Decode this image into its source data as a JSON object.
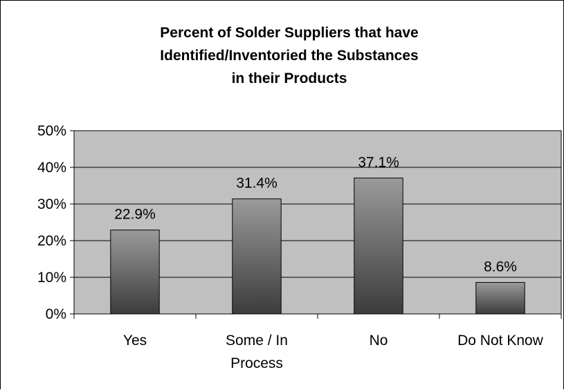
{
  "chart_data": {
    "type": "bar",
    "title_lines": [
      "Percent of Solder Suppliers that have",
      "Identified/Inventoried the Substances",
      "in their Products"
    ],
    "categories": [
      [
        "Yes"
      ],
      [
        "Some / In",
        "Process"
      ],
      [
        "No"
      ],
      [
        "Do Not Know"
      ]
    ],
    "values": [
      22.9,
      31.4,
      37.1,
      8.6
    ],
    "value_labels": [
      "22.9%",
      "31.4%",
      "37.1%",
      "8.6%"
    ],
    "xlabel": "",
    "ylabel": "",
    "ylim": [
      0,
      50
    ],
    "yticks": [
      0,
      10,
      20,
      30,
      40,
      50
    ],
    "ytick_labels": [
      "0%",
      "10%",
      "20%",
      "30%",
      "40%",
      "50%"
    ],
    "grid": true,
    "legend": "none",
    "colors": {
      "plot_background": "#c0c0c0",
      "gridline": "#000000",
      "bar_top": "#9a9a9a",
      "bar_bottom": "#3c3c3c",
      "bar_outline": "#000000"
    }
  }
}
